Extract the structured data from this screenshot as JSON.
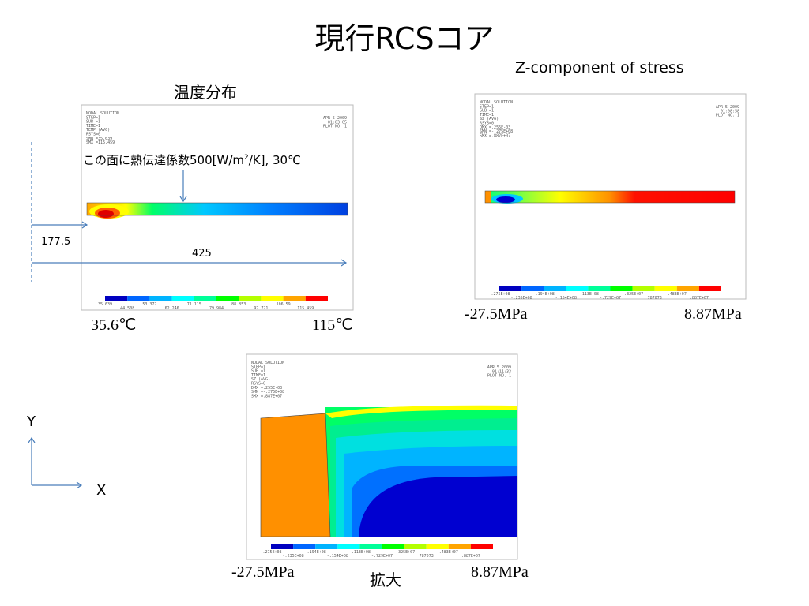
{
  "title": "現行RCSコア",
  "panels": [
    {
      "caption": "温度分布",
      "header": [
        "NODAL SOLUTION",
        "STEP=1",
        "SUB =1",
        "TIME=1",
        "TEMP     (AVG)",
        "RSYS=0",
        "SMN =35.639",
        "SMX =115.459"
      ],
      "date": [
        "APR  5 2009",
        "01:03:05",
        "PLOT NO.   1"
      ],
      "legend_labels": [
        "35.639",
        "44.508",
        "53.377",
        "62.246",
        "71.115",
        "79.984",
        "88.853",
        "97.721",
        "106.59",
        "115.459"
      ],
      "min_label": "35.6℃",
      "max_label": "115℃"
    },
    {
      "caption": "Z-component of stress",
      "header": [
        "NODAL SOLUTION",
        "STEP=1",
        "SUB =1",
        "TIME=1",
        "SZ       (AVG)",
        "RSYS=0",
        "DMX =.255E-03",
        "SMN =-.275E+08",
        "SMX =.887E+07"
      ],
      "date": [
        "APR  5 2009",
        "01:08:58",
        "PLOT NO.   1"
      ],
      "legend_labels": [
        "-.275E+08",
        "-.235E+08",
        "-.194E+08",
        "-.154E+08",
        "-.113E+08",
        "-.729E+07",
        "-.325E+07",
        "787073",
        ".483E+07",
        ".887E+07"
      ],
      "min_label": "-27.5MPa",
      "max_label": "8.87MPa"
    },
    {
      "caption": "拡大",
      "header": [
        "NODAL SOLUTION",
        "STEP=1",
        "SUB =1",
        "TIME=1",
        "SZ       (AVG)",
        "RSYS=0",
        "DMX =.255E-03",
        "SMN =-.275E+08",
        "SMX =.887E+07"
      ],
      "date": [
        "APR  5 2009",
        "01:11:33",
        "PLOT NO.   1"
      ],
      "legend_labels": [
        "-.275E+08",
        "-.235E+08",
        "-.194E+08",
        "-.154E+08",
        "-.113E+08",
        "-.729E+07",
        "-.325E+07",
        "787073",
        ".483E+07",
        ".887E+07"
      ],
      "min_label": "-27.5MPa",
      "max_label": "8.87MPa"
    }
  ],
  "annotations": {
    "heat_note": [
      "この面に熱伝達係数500[W/m",
      "2",
      "/K], 30℃"
    ],
    "dim1": "177.5",
    "dim2": "425"
  },
  "axes": {
    "y": "Y",
    "x": "X"
  }
}
